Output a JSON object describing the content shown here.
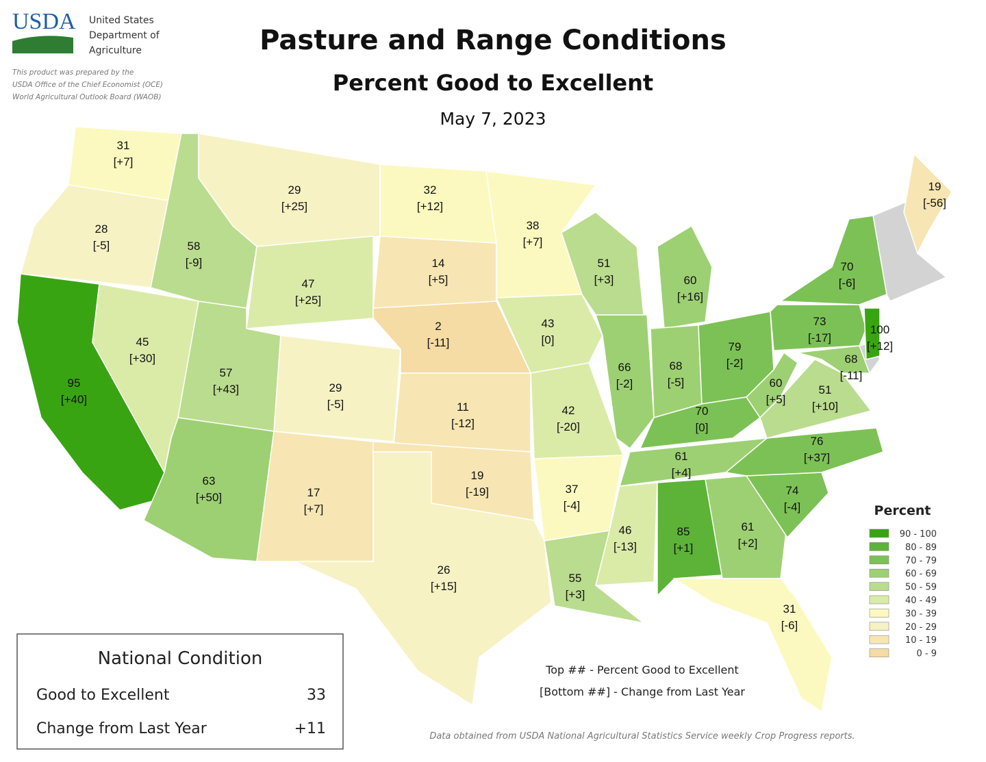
{
  "header": {
    "logo": "USDA",
    "agency_lines": [
      "United States",
      "Department of",
      "Agriculture"
    ],
    "credit_lines": [
      "This product was prepared by the",
      "USDA Office of the Chief Economist (OCE)",
      "World Agricultural Outlook Board (WAOB)"
    ],
    "title": "Pasture and Range Conditions",
    "subtitle": "Percent Good to Excellent",
    "date": "May 7, 2023"
  },
  "states": [
    {
      "value": 31,
      "change": "[+7]"
    },
    {
      "value": 28,
      "change": "[-5]"
    },
    {
      "value": 95,
      "change": "[+40]"
    },
    {
      "value": 45,
      "change": "[+30]"
    },
    {
      "value": 58,
      "change": "[-9]"
    },
    {
      "value": 29,
      "change": "[+25]"
    },
    {
      "value": 47,
      "change": "[+25]"
    },
    {
      "value": 57,
      "change": "[+43]"
    },
    {
      "value": 29,
      "change": "[-5]"
    },
    {
      "value": 63,
      "change": "[+50]"
    },
    {
      "value": 17,
      "change": "[+7]"
    },
    {
      "value": 32,
      "change": "[+12]"
    },
    {
      "value": 14,
      "change": "[+5]"
    },
    {
      "value": 2,
      "change": "[-11]"
    },
    {
      "value": 11,
      "change": "[-12]"
    },
    {
      "value": 19,
      "change": "[-19]"
    },
    {
      "value": 26,
      "change": "[+15]"
    },
    {
      "value": 38,
      "change": "[+7]"
    },
    {
      "value": 43,
      "change": "[0]"
    },
    {
      "value": 42,
      "change": "[-20]"
    },
    {
      "value": 37,
      "change": "[-4]"
    },
    {
      "value": 55,
      "change": "[+3]"
    },
    {
      "value": 51,
      "change": "[+3]"
    },
    {
      "value": 66,
      "change": "[-2]"
    },
    {
      "value": 60,
      "change": "[+16]"
    },
    {
      "value": 68,
      "change": "[-5]"
    },
    {
      "value": 79,
      "change": "[-2]"
    },
    {
      "value": 70,
      "change": "[0]"
    },
    {
      "value": 61,
      "change": "[+4]"
    },
    {
      "value": 46,
      "change": "[-13]"
    },
    {
      "value": 85,
      "change": "[+1]"
    },
    {
      "value": 61,
      "change": "[+2]"
    },
    {
      "value": 31,
      "change": "[-6]"
    },
    {
      "value": 74,
      "change": "[-4]"
    },
    {
      "value": 76,
      "change": "[+37]"
    },
    {
      "value": 51,
      "change": "[+10]"
    },
    {
      "value": 60,
      "change": "[+5]"
    },
    {
      "value": 73,
      "change": "[-17]"
    },
    {
      "value": 70,
      "change": "[-6]"
    },
    {
      "value": 100,
      "change": "[+12]"
    },
    {
      "value": 68,
      "change": "[-11]"
    },
    {
      "value": 19,
      "change": "[-56]"
    }
  ],
  "legend": {
    "title": "Percent",
    "items": [
      {
        "label": "90 - 100",
        "color": "#39a412"
      },
      {
        "label": "80 - 89",
        "color": "#5cb337"
      },
      {
        "label": "70 - 79",
        "color": "#7cc155"
      },
      {
        "label": "60 - 69",
        "color": "#9dd073"
      },
      {
        "label": "50 - 59",
        "color": "#badc8e"
      },
      {
        "label": "40 - 49",
        "color": "#daeba8"
      },
      {
        "label": "30 - 39",
        "color": "#fcf9c0"
      },
      {
        "label": "20 - 29",
        "color": "#f7f2c4"
      },
      {
        "label": "10 - 19",
        "color": "#f7e6b3"
      },
      {
        "label": "0 - 9",
        "color": "#f5dba4"
      }
    ]
  },
  "national": {
    "title": "National Condition",
    "rows": [
      {
        "label": "Good to Excellent",
        "value": 33
      },
      {
        "label": "Change from Last Year",
        "value": "+11"
      }
    ]
  },
  "notes": [
    "Top ## - Percent Good to Excellent",
    "[Bottom ##] - Change from Last Year"
  ],
  "source": "Data obtained from USDA National Agricultural Statistics Service weekly Crop Progress reports."
}
